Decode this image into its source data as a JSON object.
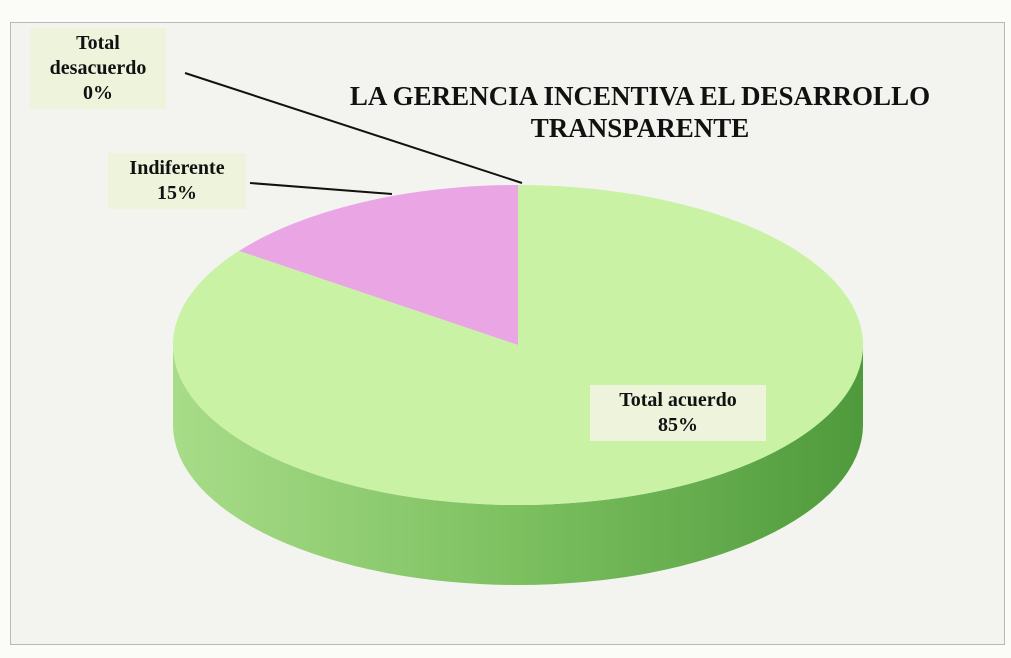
{
  "chart_data": {
    "type": "pie",
    "title": "LA GERENCIA INCENTIVA EL DESARROLLO TRANSPARENTE",
    "categories": [
      "Total desacuerdo",
      "Indiferente",
      "Total acuerdo"
    ],
    "values": [
      0,
      15,
      85
    ],
    "value_labels": [
      "0%",
      "15%",
      "85%"
    ],
    "colors": [
      "#8fb8e8",
      "#eaa6e4",
      "#c9f2a4"
    ]
  }
}
